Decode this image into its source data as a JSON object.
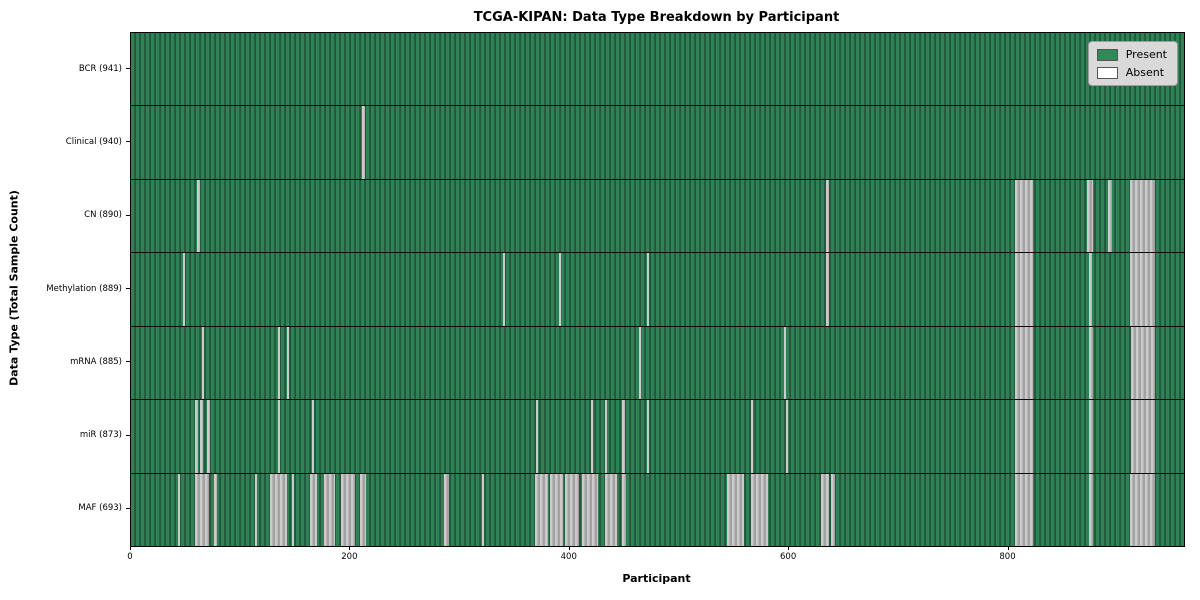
{
  "chart_data": {
    "type": "heatmap",
    "title": "TCGA-KIPAN: Data Type Breakdown by Participant",
    "xlabel": "Participant",
    "ylabel": "Data Type (Total Sample Count)",
    "x_ticks": [
      0,
      200,
      400,
      600,
      800
    ],
    "x_max": 960,
    "grid": false,
    "legend_position": "upper right",
    "legend": [
      {
        "label": "Present",
        "color": "#2e8b57"
      },
      {
        "label": "Absent",
        "color": "#ffffff"
      }
    ],
    "rows": [
      {
        "label": "BCR (941)",
        "data_type": "BCR",
        "total_sample_count": 941,
        "absent_ranges": []
      },
      {
        "label": "Clinical (940)",
        "data_type": "Clinical",
        "total_sample_count": 940,
        "absent_ranges": [
          [
            211,
            213
          ]
        ]
      },
      {
        "label": "CN (890)",
        "data_type": "CN",
        "total_sample_count": 890,
        "absent_ranges": [
          [
            60,
            63
          ],
          [
            634,
            636
          ],
          [
            806,
            822
          ],
          [
            872,
            877
          ],
          [
            891,
            894
          ],
          [
            911,
            934
          ]
        ]
      },
      {
        "label": "Methylation (889)",
        "data_type": "Methylation",
        "total_sample_count": 889,
        "absent_ranges": [
          [
            47,
            49
          ],
          [
            339,
            341
          ],
          [
            390,
            392
          ],
          [
            470,
            472
          ],
          [
            634,
            636
          ],
          [
            806,
            822
          ],
          [
            873,
            876
          ],
          [
            911,
            934
          ]
        ]
      },
      {
        "label": "mRNA (885)",
        "data_type": "mRNA",
        "total_sample_count": 885,
        "absent_ranges": [
          [
            65,
            67
          ],
          [
            134,
            136
          ],
          [
            142,
            144
          ],
          [
            463,
            465
          ],
          [
            595,
            597
          ],
          [
            806,
            822
          ],
          [
            873,
            877
          ],
          [
            912,
            934
          ]
        ]
      },
      {
        "label": "miR (873)",
        "data_type": "miR",
        "total_sample_count": 873,
        "absent_ranges": [
          [
            58,
            61
          ],
          [
            63,
            66
          ],
          [
            69,
            72
          ],
          [
            134,
            136
          ],
          [
            165,
            167
          ],
          [
            369,
            371
          ],
          [
            419,
            421
          ],
          [
            432,
            434
          ],
          [
            448,
            450
          ],
          [
            470,
            472
          ],
          [
            565,
            567
          ],
          [
            597,
            599
          ],
          [
            806,
            822
          ],
          [
            873,
            877
          ],
          [
            912,
            934
          ]
        ]
      },
      {
        "label": "MAF (693)",
        "data_type": "MAF",
        "total_sample_count": 693,
        "absent_ranges": [
          [
            43,
            45
          ],
          [
            58,
            71
          ],
          [
            76,
            78
          ],
          [
            113,
            115
          ],
          [
            127,
            142
          ],
          [
            147,
            149
          ],
          [
            163,
            170
          ],
          [
            176,
            186
          ],
          [
            191,
            204
          ],
          [
            209,
            214
          ],
          [
            285,
            290
          ],
          [
            320,
            322
          ],
          [
            368,
            380
          ],
          [
            382,
            394
          ],
          [
            396,
            408
          ],
          [
            411,
            426
          ],
          [
            432,
            443
          ],
          [
            448,
            451
          ],
          [
            543,
            559
          ],
          [
            565,
            581
          ],
          [
            629,
            636
          ],
          [
            638,
            642
          ],
          [
            806,
            822
          ],
          [
            873,
            877
          ],
          [
            911,
            934
          ]
        ]
      }
    ],
    "colors": {
      "present_fill": "#2e8b57",
      "present_edge": "#1f5438",
      "absent_fill": "#ffffff",
      "absent_shade": "#a2a2a2",
      "legend_bg": "#d9d9d9",
      "plot_border": "#000000"
    }
  }
}
